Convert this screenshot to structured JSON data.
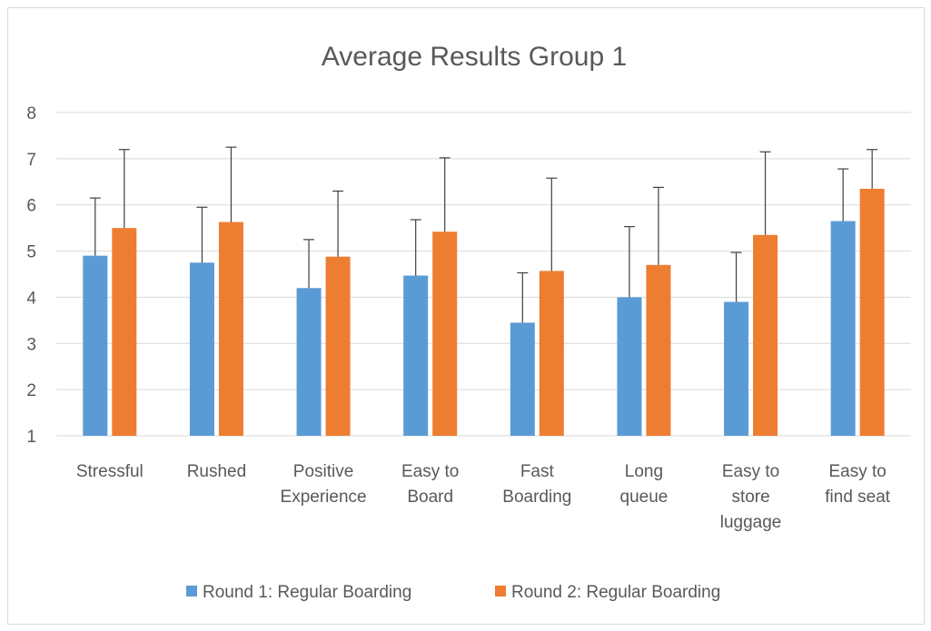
{
  "chart_data": {
    "type": "bar",
    "title": "Average Results Group 1",
    "categories": [
      [
        "Stressful"
      ],
      [
        "Rushed"
      ],
      [
        "Positive",
        "Experience"
      ],
      [
        "Easy to",
        "Board"
      ],
      [
        "Fast",
        "Boarding"
      ],
      [
        "Long",
        "queue"
      ],
      [
        "Easy to",
        "store",
        "luggage"
      ],
      [
        "Easy to",
        "find seat"
      ]
    ],
    "ylim": [
      1,
      8
    ],
    "yticks": [
      1,
      2,
      3,
      4,
      5,
      6,
      7,
      8
    ],
    "grid": true,
    "legend_position": "bottom",
    "error_bars": true,
    "series": [
      {
        "name": "Round 1: Regular Boarding",
        "color": "#5b9bd5",
        "values": [
          4.9,
          4.75,
          4.2,
          4.47,
          3.45,
          4.0,
          3.9,
          5.65
        ],
        "error_upper": [
          6.15,
          5.95,
          5.25,
          5.68,
          4.53,
          5.53,
          4.97,
          6.78
        ]
      },
      {
        "name": "Round 2: Regular Boarding",
        "color": "#ed7d31",
        "values": [
          5.5,
          5.63,
          4.88,
          5.42,
          4.57,
          4.7,
          5.35,
          6.35
        ],
        "error_upper": [
          7.2,
          7.25,
          6.3,
          7.02,
          6.58,
          6.38,
          7.15,
          7.2
        ]
      }
    ]
  }
}
